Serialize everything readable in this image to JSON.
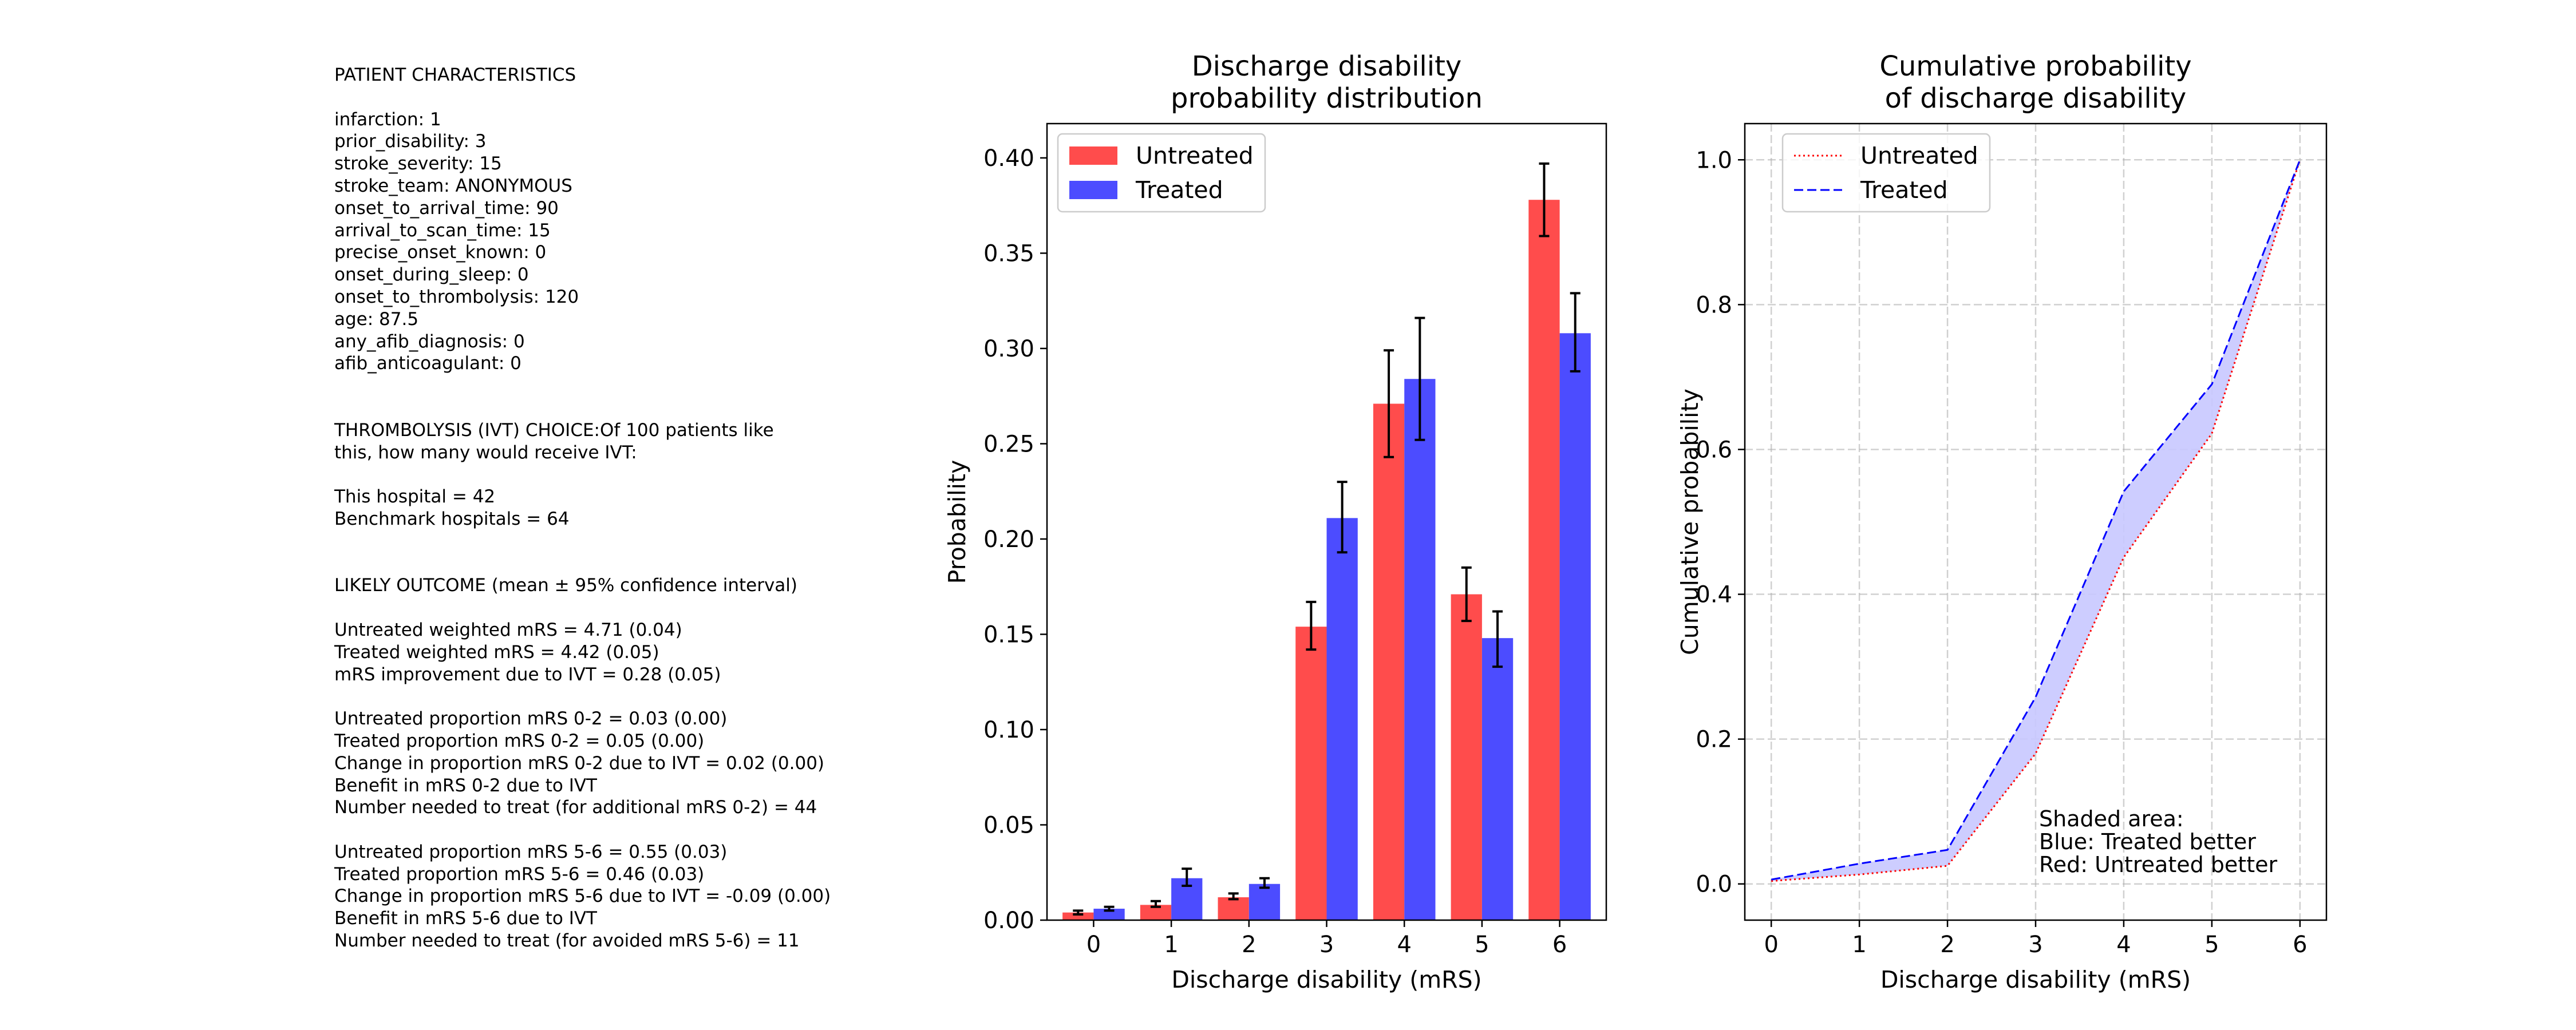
{
  "text_panel": {
    "lines": [
      "PATIENT CHARACTERISTICS",
      "",
      "infarction: 1",
      "prior_disability: 3",
      "stroke_severity: 15",
      "stroke_team: ANONYMOUS",
      "onset_to_arrival_time: 90",
      "arrival_to_scan_time: 15",
      "precise_onset_known: 0",
      "onset_during_sleep: 0",
      "onset_to_thrombolysis: 120",
      "age: 87.5",
      "any_afib_diagnosis: 0",
      "afib_anticoagulant: 0",
      "",
      "",
      "THROMBOLYSIS (IVT) CHOICE:Of 100 patients like",
      "this, how many would receive IVT:",
      "",
      "This hospital = 42",
      "Benchmark hospitals = 64",
      "",
      "",
      "LIKELY OUTCOME (mean ± 95% confidence interval)",
      "",
      "Untreated weighted mRS = 4.71 (0.04)",
      "Treated weighted mRS = 4.42 (0.05)",
      "mRS improvement due to IVT = 0.28 (0.05)",
      "",
      "Untreated proportion mRS 0-2 = 0.03 (0.00)",
      "Treated proportion mRS 0-2 = 0.05 (0.00)",
      "Change in proportion mRS 0-2 due to IVT = 0.02 (0.00)",
      "Benefit in mRS 0-2 due to IVT",
      "Number needed to treat (for additional mRS 0-2) = 44",
      "",
      "Untreated proportion mRS 5-6 = 0.55 (0.03)",
      "Treated proportion mRS 5-6 = 0.46 (0.03)",
      "Change in proportion mRS 5-6 due to IVT = -0.09 (0.00)",
      "Benefit in mRS 5-6 due to IVT",
      "Number needed to treat (for avoided mRS 5-6) = 11"
    ]
  },
  "chart_data": [
    {
      "type": "bar",
      "title": [
        "Discharge disability",
        "probability distribution"
      ],
      "xlabel": "Discharge disability (mRS)",
      "ylabel": "Probability",
      "categories": [
        "0",
        "1",
        "2",
        "3",
        "4",
        "5",
        "6"
      ],
      "ylim": [
        0,
        0.418
      ],
      "yticks": [
        0,
        0.05,
        0.1,
        0.15,
        0.2,
        0.25,
        0.3,
        0.35,
        0.4
      ],
      "ytick_labels": [
        "0.00",
        "0.05",
        "0.10",
        "0.15",
        "0.20",
        "0.25",
        "0.30",
        "0.35",
        "0.40"
      ],
      "grid": false,
      "legend_position": "top-left",
      "series": [
        {
          "name": "Untreated",
          "color": "#ff4c4c",
          "values": [
            0.004,
            0.008,
            0.012,
            0.154,
            0.271,
            0.171,
            0.378
          ],
          "error_low": [
            0.003,
            0.007,
            0.011,
            0.142,
            0.243,
            0.157,
            0.359
          ],
          "error_high": [
            0.005,
            0.01,
            0.014,
            0.167,
            0.299,
            0.185,
            0.397
          ]
        },
        {
          "name": "Treated",
          "color": "#4c4cff",
          "values": [
            0.006,
            0.022,
            0.019,
            0.211,
            0.284,
            0.148,
            0.308
          ],
          "error_low": [
            0.005,
            0.018,
            0.017,
            0.193,
            0.252,
            0.133,
            0.288
          ],
          "error_high": [
            0.007,
            0.027,
            0.022,
            0.23,
            0.316,
            0.162,
            0.329
          ]
        }
      ]
    },
    {
      "type": "line",
      "title": [
        "Cumulative probability",
        "of discharge disability"
      ],
      "xlabel": "Discharge disability (mRS)",
      "ylabel": "Cumulative probability",
      "x": [
        0,
        1,
        2,
        3,
        4,
        5,
        6
      ],
      "xlim": [
        -0.3,
        6.3
      ],
      "ylim": [
        -0.05,
        1.05
      ],
      "yticks": [
        0,
        0.2,
        0.4,
        0.6,
        0.8,
        1.0
      ],
      "ytick_labels": [
        "0.0",
        "0.2",
        "0.4",
        "0.6",
        "0.8",
        "1.0"
      ],
      "grid": true,
      "legend_position": "top-left",
      "series": [
        {
          "name": "Untreated",
          "color": "#ff0000",
          "style": "dotted",
          "values": [
            0.004,
            0.013,
            0.025,
            0.18,
            0.451,
            0.622,
            1.0
          ]
        },
        {
          "name": "Treated",
          "color": "#0000ff",
          "style": "dashed",
          "values": [
            0.006,
            0.028,
            0.047,
            0.258,
            0.542,
            0.69,
            1.0
          ]
        }
      ],
      "fill_color": "#c8c8ff",
      "annotation": [
        "Shaded area:",
        "Blue: Treated better",
        "Red: Untreated better"
      ]
    }
  ]
}
